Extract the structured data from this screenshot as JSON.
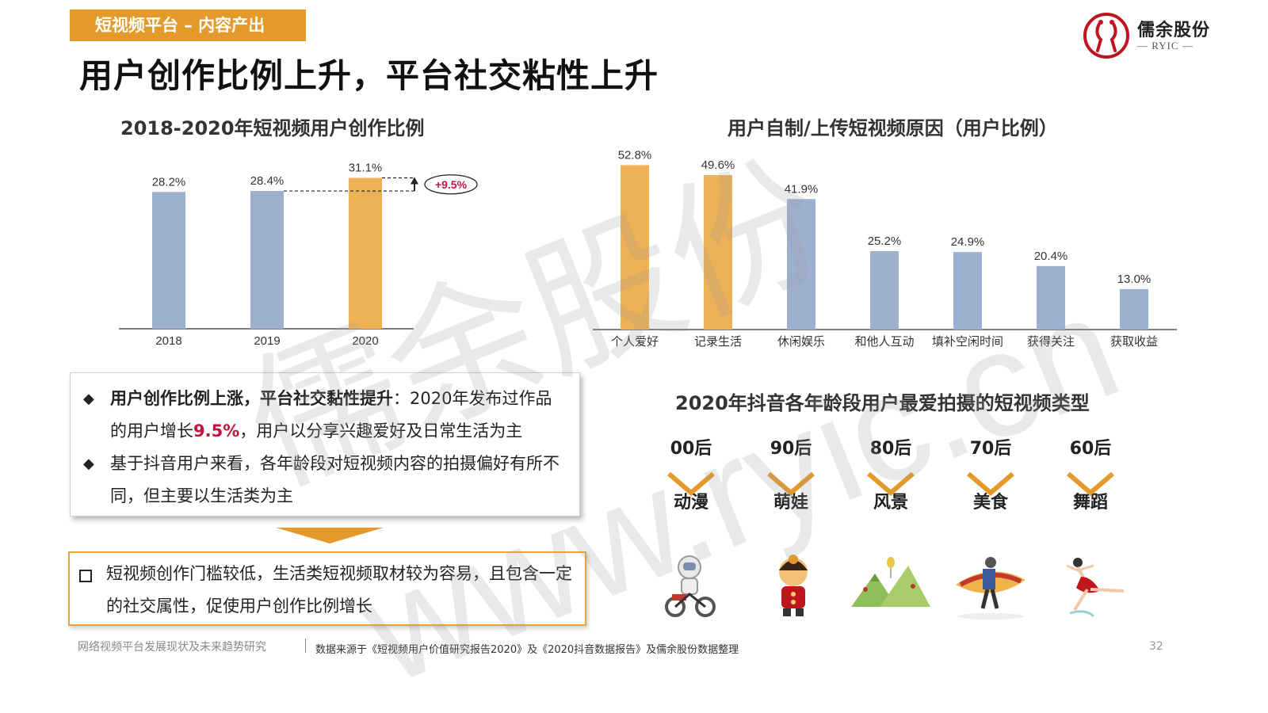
{
  "header": {
    "tag": "短视频平台 – 内容产出",
    "title": "用户创作比例上升，平台社交粘性上升"
  },
  "logo": {
    "name_cn": "儒余股份",
    "name_en": "RYIC",
    "mark_color": "#c0141e"
  },
  "colors": {
    "accent": "#e49a2a",
    "bar_blue": "#9eb0d0",
    "bar_orange": "#efb156",
    "highlight_red": "#c0143c"
  },
  "chart_data": [
    {
      "type": "bar",
      "title": "2018-2020年短视频用户创作比例",
      "categories": [
        "2018",
        "2019",
        "2020"
      ],
      "values": [
        28.2,
        28.4,
        31.1
      ],
      "value_labels": [
        "28.2%",
        "28.4%",
        "31.1%"
      ],
      "highlight_index": 2,
      "annotation": "+9.5%",
      "ylim": [
        0,
        36
      ],
      "grid": false
    },
    {
      "type": "bar",
      "title": "用户自制/上传短视频原因（用户比例）",
      "categories": [
        "个人爱好",
        "记录生活",
        "休闲娱乐",
        "和他人互动",
        "填补空闲时间",
        "获得关注",
        "获取收益"
      ],
      "values": [
        52.8,
        49.6,
        41.9,
        25.2,
        24.9,
        20.4,
        13.0
      ],
      "value_labels": [
        "52.8%",
        "49.6%",
        "41.9%",
        "25.2%",
        "24.9%",
        "20.4%",
        "13.0%"
      ],
      "highlight_indices": [
        0,
        1
      ],
      "ylim": [
        0,
        58
      ],
      "grid": false
    }
  ],
  "summary_box": {
    "bullets": [
      {
        "symbol": "◆",
        "bold": "用户创作比例上涨，平台社交黏性提升",
        "text_a": "：2020年发布过作品的用户增长",
        "highlight": "9.5%",
        "text_b": "，用户以分享兴趣爱好及日常生活为主"
      },
      {
        "symbol": "◆",
        "text": "基于抖音用户来看，各年龄段对短视频内容的拍摄偏好有所不同，但主要以生活类为主"
      }
    ]
  },
  "conclusion_box": {
    "text": "短视频创作门槛较低，生活类短视频取材较为容易，且包含一定的社交属性，促使用户创作比例增长"
  },
  "age_section": {
    "title": "2020年抖音各年龄段用户最爱拍摄的短视频类型",
    "groups": [
      {
        "age": "00后",
        "type": "动漫",
        "icon": "robot-cyclist-icon"
      },
      {
        "age": "90后",
        "type": "萌娃",
        "icon": "child-icon"
      },
      {
        "age": "80后",
        "type": "风景",
        "icon": "mountain-landscape-icon"
      },
      {
        "age": "70后",
        "type": "美食",
        "icon": "hotdog-food-icon"
      },
      {
        "age": "60后",
        "type": "舞蹈",
        "icon": "dancer-icon"
      }
    ]
  },
  "footer": {
    "left": "网络视频平台发展现状及未来趋势研究",
    "source": "数据来源于《短视频用户价值研究报告2020》及《2020抖音数据报告》及儒余股份数据整理",
    "page": "32"
  },
  "watermark": {
    "line1": "儒余股份",
    "line2": "www.ryic.cn"
  }
}
